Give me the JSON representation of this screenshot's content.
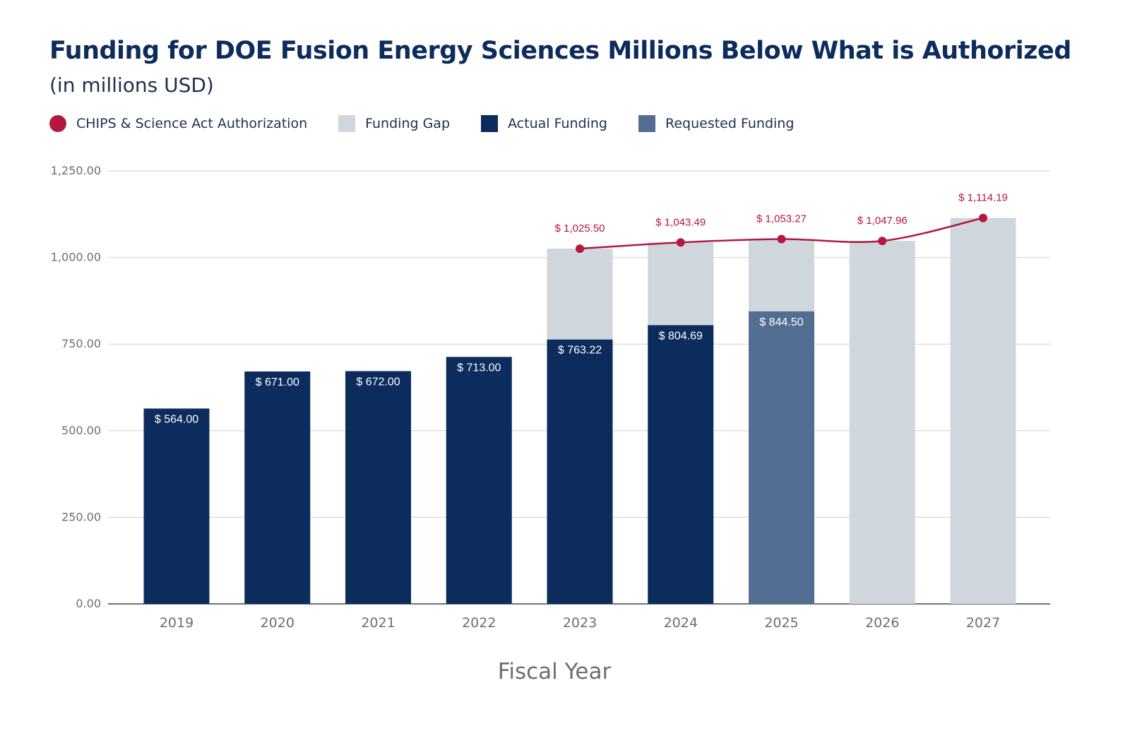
{
  "title": "Funding for DOE Fusion Energy Sciences Millions Below What is Authorized",
  "subtitle": "(in millions USD)",
  "legend": [
    {
      "label": "CHIPS & Science Act Authorization",
      "color": "#b5173f",
      "shape": "circle"
    },
    {
      "label": "Funding Gap",
      "color": "#cfd7dd",
      "shape": "square"
    },
    {
      "label": "Actual Funding",
      "color": "#0d2c5e",
      "shape": "square"
    },
    {
      "label": "Requested Funding",
      "color": "#546d92",
      "shape": "square"
    }
  ],
  "chart_data": {
    "type": "bar",
    "title": "Funding for DOE Fusion Energy Sciences Millions Below What is Authorized",
    "subtitle": "(in millions USD)",
    "xlabel": "Fiscal Year",
    "ylabel": "",
    "ylim": [
      0,
      1250
    ],
    "yticks": [
      0,
      250,
      500,
      750,
      1000,
      1250
    ],
    "ytick_labels": [
      "0.00",
      "250.00",
      "500.00",
      "750.00",
      "1,000.00",
      "1,250.00"
    ],
    "grid": true,
    "legend_position": "top-left",
    "categories": [
      "2019",
      "2020",
      "2021",
      "2022",
      "2023",
      "2024",
      "2025",
      "2026",
      "2027"
    ],
    "series": [
      {
        "name": "Actual Funding",
        "kind": "bar",
        "color": "#0d2c5e",
        "values": [
          564.0,
          671.0,
          672.0,
          713.0,
          763.22,
          804.69,
          null,
          null,
          null
        ],
        "labels": [
          "$ 564.00",
          "$ 671.00",
          "$ 672.00",
          "$ 713.00",
          "$ 763.22",
          "$ 804.69",
          null,
          null,
          null
        ]
      },
      {
        "name": "Requested Funding",
        "kind": "bar",
        "color": "#546d92",
        "values": [
          null,
          null,
          null,
          null,
          null,
          null,
          844.5,
          null,
          null
        ],
        "labels": [
          null,
          null,
          null,
          null,
          null,
          null,
          "$ 844.50",
          null,
          null
        ]
      },
      {
        "name": "Funding Gap",
        "kind": "stacked-bar",
        "color": "#cfd7dd",
        "values": [
          null,
          null,
          null,
          null,
          262.28,
          238.8,
          208.77,
          1047.96,
          1114.19
        ]
      },
      {
        "name": "CHIPS & Science Act Authorization",
        "kind": "line",
        "color": "#b5173f",
        "values": [
          null,
          null,
          null,
          null,
          1025.5,
          1043.49,
          1053.27,
          1047.96,
          1114.19
        ],
        "labels": [
          null,
          null,
          null,
          null,
          "$ 1,025.50",
          "$ 1,043.49",
          "$ 1,053.27",
          "$ 1,047.96",
          "$ 1,114.19"
        ]
      }
    ]
  }
}
